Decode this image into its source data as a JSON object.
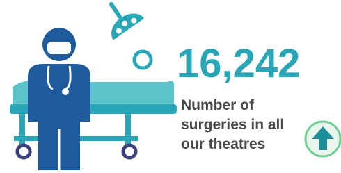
{
  "stat": {
    "value": "16,242",
    "label_lines": [
      "Number of",
      "surgeries in all",
      "our theatres"
    ]
  }
}
